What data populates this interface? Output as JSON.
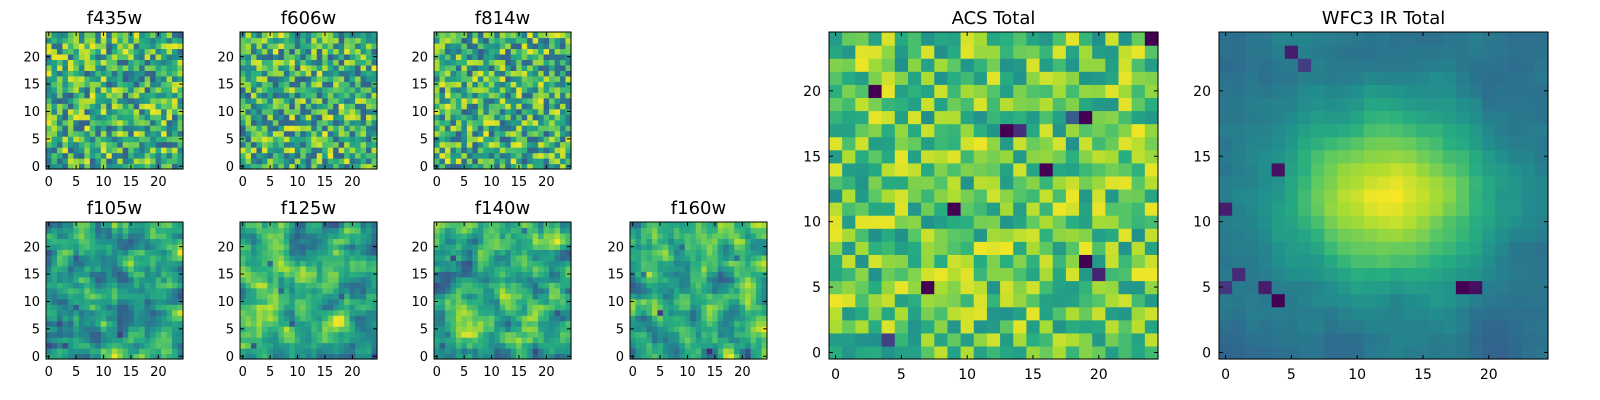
{
  "figure_title": "",
  "colors": {
    "cmap": "viridis",
    "frame": "#000000",
    "background": "#ffffff"
  },
  "chart_data": [
    {
      "id": "f435w",
      "type": "heatmap",
      "title": "f435w",
      "grid_size": 25,
      "xlim": [
        0,
        24
      ],
      "ylim": [
        0,
        24
      ],
      "xticks": [
        0,
        5,
        10,
        15,
        20
      ],
      "yticks": [
        0,
        5,
        10,
        15,
        20
      ],
      "texture": "fine",
      "seed": 11,
      "spots": []
    },
    {
      "id": "f606w",
      "type": "heatmap",
      "title": "f606w",
      "grid_size": 25,
      "xlim": [
        0,
        24
      ],
      "ylim": [
        0,
        24
      ],
      "xticks": [
        0,
        5,
        10,
        15,
        20
      ],
      "yticks": [
        0,
        5,
        10,
        15,
        20
      ],
      "texture": "fine",
      "seed": 23,
      "spots": []
    },
    {
      "id": "f814w",
      "type": "heatmap",
      "title": "f814w",
      "grid_size": 25,
      "xlim": [
        0,
        24
      ],
      "ylim": [
        0,
        24
      ],
      "xticks": [
        0,
        5,
        10,
        15,
        20
      ],
      "yticks": [
        0,
        5,
        10,
        15,
        20
      ],
      "texture": "fine",
      "seed": 37,
      "spots": []
    },
    {
      "id": "f105w",
      "type": "heatmap",
      "title": "f105w",
      "grid_size": 25,
      "xlim": [
        0,
        24
      ],
      "ylim": [
        0,
        24
      ],
      "xticks": [
        0,
        5,
        10,
        15,
        20
      ],
      "yticks": [
        0,
        5,
        10,
        15,
        20
      ],
      "texture": "smooth",
      "seed": 41,
      "spots": [
        [
          3,
          2,
          0.6
        ],
        [
          13,
          4,
          0.5
        ],
        [
          5,
          9,
          0.4
        ],
        [
          21,
          14,
          0.35
        ]
      ]
    },
    {
      "id": "f125w",
      "type": "heatmap",
      "title": "f125w",
      "grid_size": 25,
      "xlim": [
        0,
        24
      ],
      "ylim": [
        0,
        24
      ],
      "xticks": [
        0,
        5,
        10,
        15,
        20
      ],
      "yticks": [
        0,
        5,
        10,
        15,
        20
      ],
      "texture": "smooth",
      "seed": 53,
      "spots": [
        [
          2,
          2,
          0.6
        ],
        [
          5,
          17,
          0.5
        ],
        [
          9,
          6,
          0.4
        ],
        [
          18,
          11,
          0.45
        ],
        [
          7,
          12,
          0.4
        ]
      ]
    },
    {
      "id": "f140w",
      "type": "heatmap",
      "title": "f140w",
      "grid_size": 25,
      "xlim": [
        0,
        24
      ],
      "ylim": [
        0,
        24
      ],
      "xticks": [
        0,
        5,
        10,
        15,
        20
      ],
      "yticks": [
        0,
        5,
        10,
        15,
        20
      ],
      "texture": "smooth",
      "seed": 67,
      "spots": [
        [
          3,
          18,
          0.7
        ],
        [
          16,
          23,
          0.5
        ],
        [
          22,
          8,
          0.4
        ],
        [
          1,
          2,
          0.4
        ]
      ]
    },
    {
      "id": "f160w",
      "type": "heatmap",
      "title": "f160w",
      "grid_size": 25,
      "xlim": [
        0,
        24
      ],
      "ylim": [
        0,
        24
      ],
      "xticks": [
        0,
        5,
        10,
        15,
        20
      ],
      "yticks": [
        0,
        5,
        10,
        15,
        20
      ],
      "texture": "smooth",
      "seed": 79,
      "spots": [
        [
          5,
          8,
          0.8
        ],
        [
          14,
          1,
          0.7
        ],
        [
          2,
          15,
          0.5
        ],
        [
          19,
          18,
          0.4
        ],
        [
          9,
          20,
          0.4
        ]
      ]
    },
    {
      "id": "acs-total",
      "type": "heatmap",
      "title": "ACS Total",
      "grid_size": 25,
      "xlim": [
        0,
        24
      ],
      "ylim": [
        0,
        24
      ],
      "xticks": [
        0,
        5,
        10,
        15,
        20
      ],
      "yticks": [
        0,
        5,
        10,
        15,
        20
      ],
      "texture": "bright",
      "seed": 97,
      "spots": [
        [
          24,
          24,
          1
        ],
        [
          3,
          20,
          1
        ],
        [
          13,
          17,
          1
        ],
        [
          14,
          17,
          0.8
        ],
        [
          19,
          18,
          1
        ],
        [
          16,
          14,
          1
        ],
        [
          9,
          11,
          1
        ],
        [
          19,
          7,
          1
        ],
        [
          7,
          5,
          1
        ],
        [
          20,
          6,
          0.8
        ],
        [
          4,
          1,
          0.6
        ],
        [
          18,
          18,
          0.6
        ]
      ]
    },
    {
      "id": "wfc3-ir-total",
      "type": "heatmap",
      "title": "WFC3 IR Total",
      "grid_size": 25,
      "xlim": [
        0,
        24
      ],
      "ylim": [
        0,
        24
      ],
      "xticks": [
        0,
        5,
        10,
        15,
        20
      ],
      "yticks": [
        0,
        5,
        10,
        15,
        20
      ],
      "texture": "galaxy",
      "seed": 131,
      "spots": [
        [
          4,
          4,
          1
        ],
        [
          3,
          5,
          0.8
        ],
        [
          18,
          5,
          1
        ],
        [
          19,
          5,
          0.9
        ],
        [
          4,
          14,
          0.9
        ],
        [
          0,
          11,
          0.8
        ],
        [
          5,
          23,
          0.8
        ],
        [
          6,
          22,
          0.6
        ],
        [
          1,
          6,
          0.7
        ],
        [
          0,
          5,
          0.6
        ]
      ]
    }
  ]
}
